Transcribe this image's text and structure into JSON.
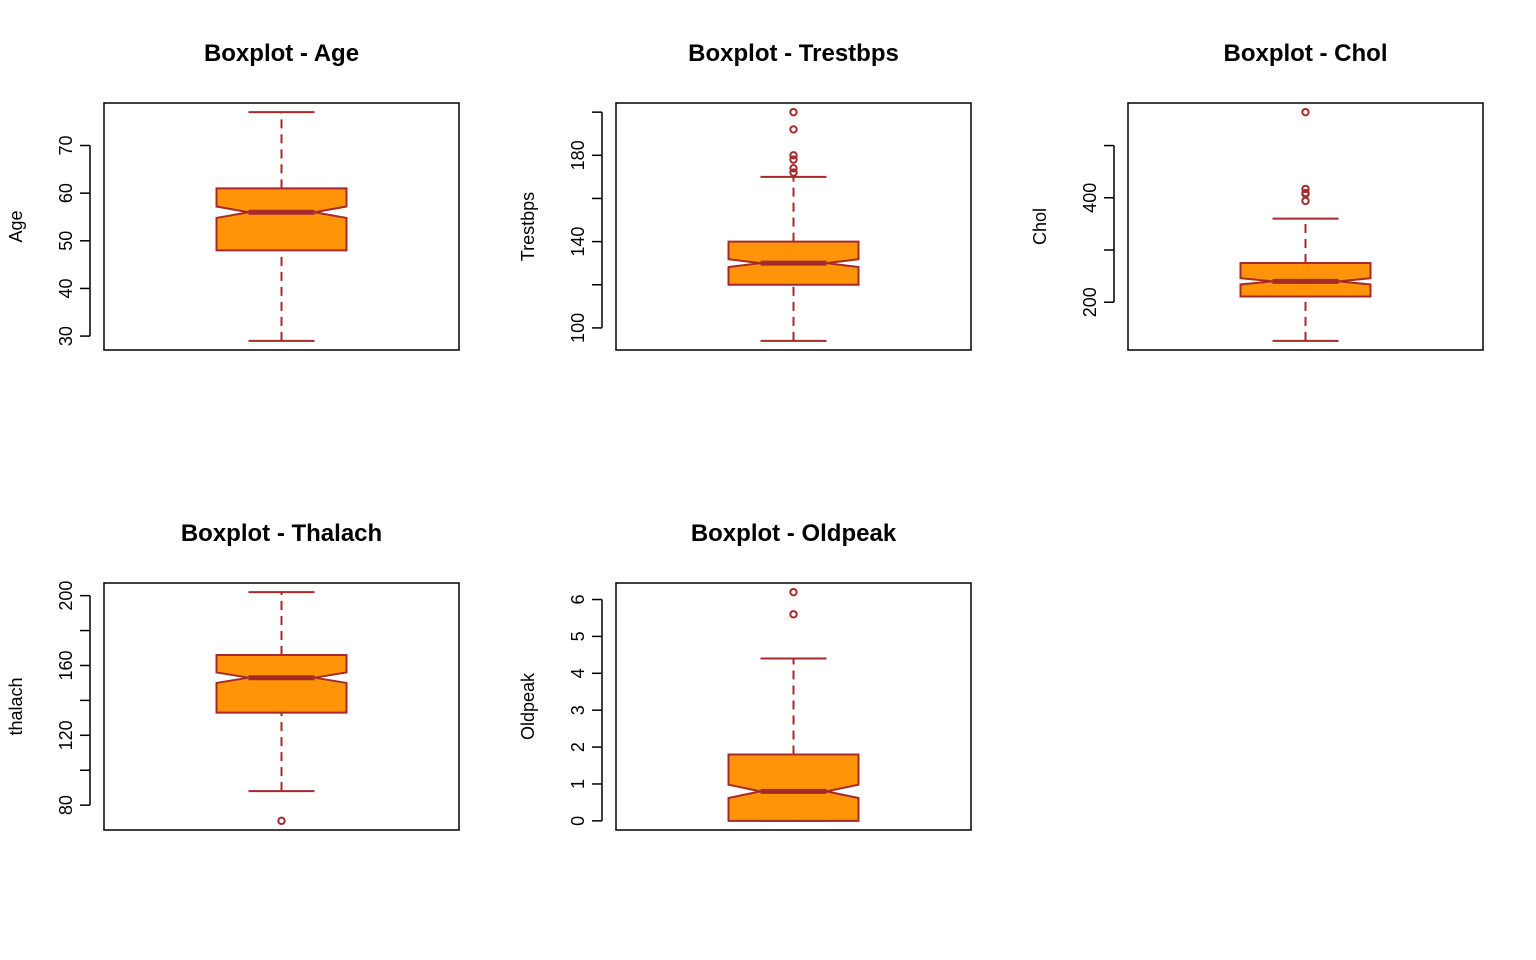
{
  "colors": {
    "box_fill": "#FF9409",
    "box_border": "#A52A2A",
    "frame": "#000000"
  },
  "chart_data": [
    {
      "type": "boxplot",
      "title": "Boxplot - Age",
      "ylabel": "Age",
      "notch": true,
      "ylim": [
        29,
        77
      ],
      "yticks": [
        30,
        40,
        50,
        60,
        70
      ],
      "stats": {
        "lower_whisker": 29,
        "q1": 48,
        "median": 56,
        "q3": 61,
        "upper_whisker": 77,
        "notch_low": 54.8,
        "notch_high": 57.2
      },
      "outliers": []
    },
    {
      "type": "boxplot",
      "title": "Boxplot - Trestbps",
      "ylabel": "Trestbps",
      "notch": true,
      "ylim": [
        94,
        200
      ],
      "yticks": [
        100,
        120,
        140,
        160,
        180,
        200
      ],
      "ytick_labels": [
        "100",
        "",
        "140",
        "",
        "180",
        ""
      ],
      "stats": {
        "lower_whisker": 94,
        "q1": 120,
        "median": 130,
        "q3": 140,
        "upper_whisker": 170,
        "notch_low": 128.2,
        "notch_high": 131.8
      },
      "outliers": [
        172,
        174,
        178,
        180,
        192,
        200
      ]
    },
    {
      "type": "boxplot",
      "title": "Boxplot - Chol",
      "ylabel": "Chol",
      "notch": true,
      "ylim": [
        126,
        564
      ],
      "yticks": [
        200,
        300,
        400,
        500
      ],
      "ytick_labels": [
        "200",
        "",
        "400",
        ""
      ],
      "stats": {
        "lower_whisker": 126,
        "q1": 211,
        "median": 240,
        "q3": 275,
        "upper_whisker": 360,
        "notch_low": 234,
        "notch_high": 246
      },
      "outliers": [
        394,
        407,
        409,
        417,
        564
      ]
    },
    {
      "type": "boxplot",
      "title": "Boxplot - Thalach",
      "ylabel": "thalach",
      "notch": true,
      "ylim": [
        71,
        202
      ],
      "yticks": [
        80,
        100,
        120,
        140,
        160,
        180,
        200
      ],
      "ytick_labels": [
        "80",
        "",
        "120",
        "",
        "160",
        "",
        "200"
      ],
      "stats": {
        "lower_whisker": 88,
        "q1": 133,
        "median": 153,
        "q3": 166,
        "upper_whisker": 202,
        "notch_low": 150,
        "notch_high": 156
      },
      "outliers": [
        71
      ]
    },
    {
      "type": "boxplot",
      "title": "Boxplot - Oldpeak",
      "ylabel": "Oldpeak",
      "notch": true,
      "ylim": [
        0,
        6.2
      ],
      "yticks": [
        0,
        1,
        2,
        3,
        4,
        5,
        6
      ],
      "stats": {
        "lower_whisker": 0,
        "q1": 0,
        "median": 0.8,
        "q3": 1.8,
        "upper_whisker": 4.4,
        "notch_low": 0.62,
        "notch_high": 0.98
      },
      "outliers": [
        5.6,
        6.2
      ]
    }
  ]
}
